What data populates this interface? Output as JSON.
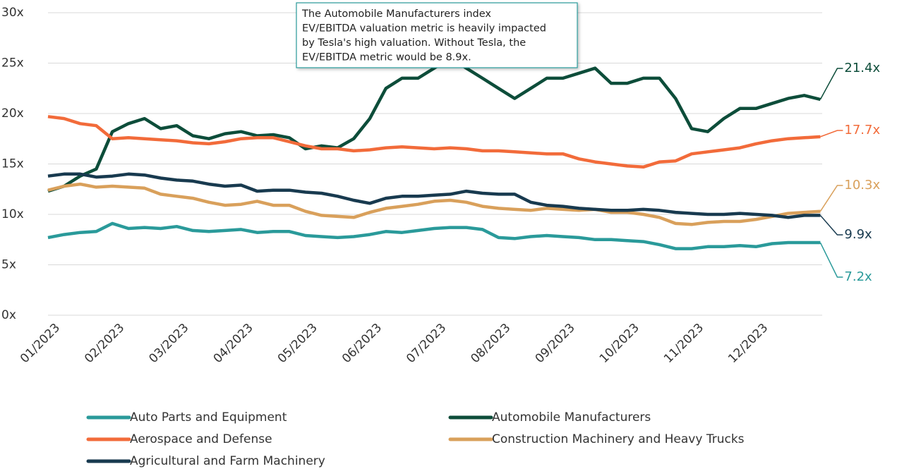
{
  "chart_data": {
    "type": "line",
    "annotation": [
      "The Automobile Manufacturers index",
      "EV/EBITDA valuation metric is heavily impacted",
      "by Tesla's high valuation. Without Tesla, the",
      "EV/EBITDA metric would be 8.9x."
    ],
    "categories": [
      "01/2023",
      null,
      null,
      null,
      "02/2023",
      null,
      null,
      null,
      "03/2023",
      null,
      null,
      null,
      "04/2023",
      null,
      null,
      null,
      "05/2023",
      null,
      null,
      null,
      "06/2023",
      null,
      null,
      null,
      "07/2023",
      null,
      null,
      null,
      "08/2023",
      null,
      null,
      null,
      "09/2023",
      null,
      null,
      null,
      "10/2023",
      null,
      null,
      null,
      "11/2023",
      null,
      null,
      null,
      "12/2023",
      null,
      null,
      null,
      null
    ],
    "ylim": [
      0,
      30
    ],
    "yticks": [
      {
        "value": 0,
        "label": "0x"
      },
      {
        "value": 5,
        "label": "5x"
      },
      {
        "value": 10,
        "label": "10x"
      },
      {
        "value": 15,
        "label": "15x"
      },
      {
        "value": 20,
        "label": "20x"
      },
      {
        "value": 25,
        "label": "25x"
      },
      {
        "value": 30,
        "label": "30x"
      }
    ],
    "grid": true,
    "legend": "bottom",
    "series": [
      {
        "name": "Auto Parts and Equipment",
        "color": "#2a9a9a",
        "values": [
          7.7,
          8.0,
          8.2,
          8.3,
          9.1,
          8.6,
          8.7,
          8.6,
          8.8,
          8.4,
          8.3,
          8.4,
          8.5,
          8.2,
          8.3,
          8.3,
          7.9,
          7.8,
          7.7,
          7.8,
          8.0,
          8.3,
          8.2,
          8.4,
          8.6,
          8.7,
          8.7,
          8.5,
          7.7,
          7.6,
          7.8,
          7.9,
          7.8,
          7.7,
          7.5,
          7.5,
          7.4,
          7.3,
          7.0,
          6.6,
          6.6,
          6.8,
          6.8,
          6.9,
          6.8,
          7.1,
          7.2,
          7.2,
          7.2
        ],
        "value_labels": [
          null,
          null,
          null,
          null,
          null,
          null,
          null,
          null,
          null,
          null,
          null,
          null,
          null,
          null,
          null,
          null,
          null,
          null,
          null,
          null,
          null,
          null,
          null,
          null,
          null,
          null,
          null,
          null,
          null,
          null,
          null,
          null,
          null,
          null,
          null,
          null,
          null,
          null,
          null,
          null,
          null,
          null,
          null,
          null,
          null,
          null,
          null,
          null,
          "7.2x"
        ]
      },
      {
        "name": "Automobile Manufacturers",
        "color": "#0d4d3a",
        "values": [
          12.3,
          12.8,
          13.8,
          14.5,
          18.2,
          19.0,
          19.5,
          18.5,
          18.8,
          17.8,
          17.5,
          18.0,
          18.2,
          17.8,
          17.9,
          17.6,
          16.5,
          16.8,
          16.6,
          17.5,
          19.5,
          22.5,
          23.5,
          23.5,
          24.5,
          25.5,
          24.5,
          23.5,
          22.5,
          21.5,
          22.5,
          23.5,
          23.5,
          24.0,
          24.5,
          23.0,
          23.0,
          23.5,
          23.5,
          21.5,
          18.5,
          18.2,
          19.5,
          20.5,
          20.5,
          21.0,
          21.5,
          21.8,
          21.4
        ],
        "value_labels": [
          null,
          null,
          null,
          null,
          null,
          null,
          null,
          null,
          null,
          null,
          null,
          null,
          null,
          null,
          null,
          null,
          null,
          null,
          null,
          null,
          null,
          null,
          null,
          null,
          null,
          null,
          null,
          null,
          null,
          null,
          null,
          null,
          null,
          null,
          null,
          null,
          null,
          null,
          null,
          null,
          null,
          null,
          null,
          null,
          null,
          null,
          null,
          null,
          "21.4x"
        ]
      },
      {
        "name": "Aerospace and Defense",
        "color": "#f26b3a",
        "values": [
          19.7,
          19.5,
          19.0,
          18.8,
          17.5,
          17.6,
          17.5,
          17.4,
          17.3,
          17.1,
          17.0,
          17.2,
          17.5,
          17.6,
          17.6,
          17.2,
          16.8,
          16.5,
          16.5,
          16.3,
          16.4,
          16.6,
          16.7,
          16.6,
          16.5,
          16.6,
          16.5,
          16.3,
          16.3,
          16.2,
          16.1,
          16.0,
          16.0,
          15.5,
          15.2,
          15.0,
          14.8,
          14.7,
          15.2,
          15.3,
          16.0,
          16.2,
          16.4,
          16.6,
          17.0,
          17.3,
          17.5,
          17.6,
          17.7
        ],
        "value_labels": [
          null,
          null,
          null,
          null,
          null,
          null,
          null,
          null,
          null,
          null,
          null,
          null,
          null,
          null,
          null,
          null,
          null,
          null,
          null,
          null,
          null,
          null,
          null,
          null,
          null,
          null,
          null,
          null,
          null,
          null,
          null,
          null,
          null,
          null,
          null,
          null,
          null,
          null,
          null,
          null,
          null,
          null,
          null,
          null,
          null,
          null,
          null,
          null,
          "17.7x"
        ]
      },
      {
        "name": "Construction Machinery and Heavy Trucks",
        "color": "#d9a05b",
        "values": [
          12.4,
          12.8,
          13.0,
          12.7,
          12.8,
          12.7,
          12.6,
          12.0,
          11.8,
          11.6,
          11.2,
          10.9,
          11.0,
          11.3,
          10.9,
          10.9,
          10.3,
          9.9,
          9.8,
          9.7,
          10.2,
          10.6,
          10.8,
          11.0,
          11.3,
          11.4,
          11.2,
          10.8,
          10.6,
          10.5,
          10.4,
          10.6,
          10.5,
          10.4,
          10.5,
          10.2,
          10.2,
          10.0,
          9.7,
          9.1,
          9.0,
          9.2,
          9.3,
          9.3,
          9.5,
          9.8,
          10.1,
          10.2,
          10.3
        ],
        "value_labels": [
          null,
          null,
          null,
          null,
          null,
          null,
          null,
          null,
          null,
          null,
          null,
          null,
          null,
          null,
          null,
          null,
          null,
          null,
          null,
          null,
          null,
          null,
          null,
          null,
          null,
          null,
          null,
          null,
          null,
          null,
          null,
          null,
          null,
          null,
          null,
          null,
          null,
          null,
          null,
          null,
          null,
          null,
          null,
          null,
          null,
          null,
          null,
          null,
          "10.3x"
        ]
      },
      {
        "name": "Agricultural and Farm Machinery",
        "color": "#183a4f",
        "values": [
          13.8,
          14.0,
          14.0,
          13.7,
          13.8,
          14.0,
          13.9,
          13.6,
          13.4,
          13.3,
          13.0,
          12.8,
          12.9,
          12.3,
          12.4,
          12.4,
          12.2,
          12.1,
          11.8,
          11.4,
          11.1,
          11.6,
          11.8,
          11.8,
          11.9,
          12.0,
          12.3,
          12.1,
          12.0,
          12.0,
          11.2,
          10.9,
          10.8,
          10.6,
          10.5,
          10.4,
          10.4,
          10.5,
          10.4,
          10.2,
          10.1,
          10.0,
          10.0,
          10.1,
          10.0,
          9.9,
          9.7,
          9.9,
          9.9
        ],
        "value_labels": [
          null,
          null,
          null,
          null,
          null,
          null,
          null,
          null,
          null,
          null,
          null,
          null,
          null,
          null,
          null,
          null,
          null,
          null,
          null,
          null,
          null,
          null,
          null,
          null,
          null,
          null,
          null,
          null,
          null,
          null,
          null,
          null,
          null,
          null,
          null,
          null,
          null,
          null,
          null,
          null,
          null,
          null,
          null,
          null,
          null,
          null,
          null,
          null,
          "9.9x"
        ]
      }
    ]
  }
}
